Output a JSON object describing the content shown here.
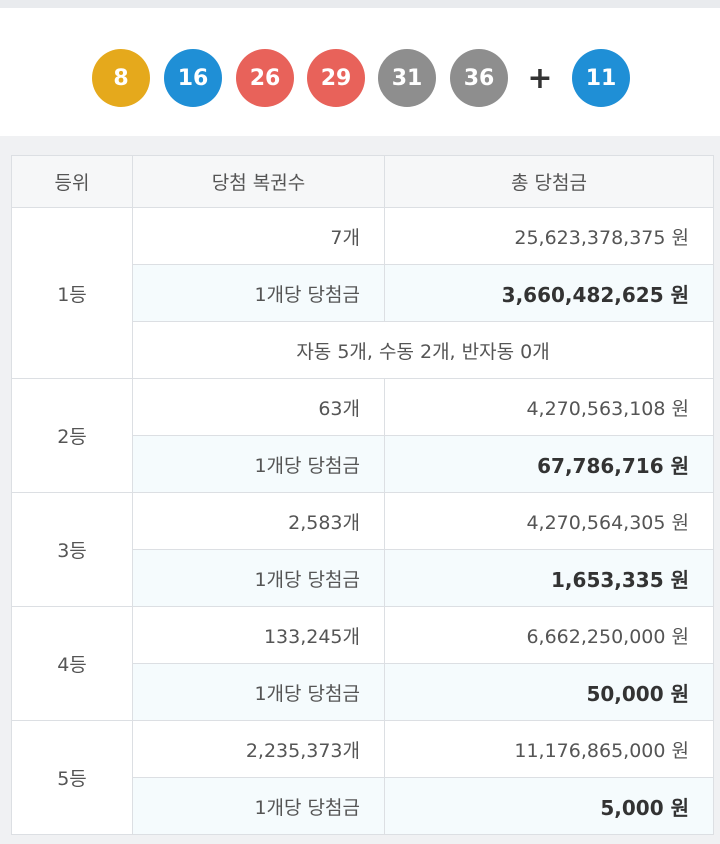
{
  "numbers": {
    "balls": [
      {
        "value": "8",
        "color": "#e5a91c"
      },
      {
        "value": "16",
        "color": "#1f8fd6"
      },
      {
        "value": "26",
        "color": "#e8625a"
      },
      {
        "value": "29",
        "color": "#e8625a"
      },
      {
        "value": "31",
        "color": "#8e8e8e"
      },
      {
        "value": "36",
        "color": "#8e8e8e"
      }
    ],
    "plus": "+",
    "bonus": {
      "value": "11",
      "color": "#1f8fd6"
    }
  },
  "table": {
    "headers": {
      "rank": "등위",
      "winners": "당첨 복권수",
      "total": "총 당첨금"
    },
    "per_ticket_label": "1개당 당첨금",
    "rows": [
      {
        "rank": "1등",
        "winners": "7개",
        "total": "25,623,378,375 원",
        "per_ticket": "3,660,482,625 원",
        "note": "자동 5개, 수동 2개, 반자동 0개"
      },
      {
        "rank": "2등",
        "winners": "63개",
        "total": "4,270,563,108 원",
        "per_ticket": "67,786,716 원"
      },
      {
        "rank": "3등",
        "winners": "2,583개",
        "total": "4,270,564,305 원",
        "per_ticket": "1,653,335 원"
      },
      {
        "rank": "4등",
        "winners": "133,245개",
        "total": "6,662,250,000 원",
        "per_ticket": "50,000 원"
      },
      {
        "rank": "5등",
        "winners": "2,235,373개",
        "total": "11,176,865,000 원",
        "per_ticket": "5,000 원"
      }
    ]
  }
}
